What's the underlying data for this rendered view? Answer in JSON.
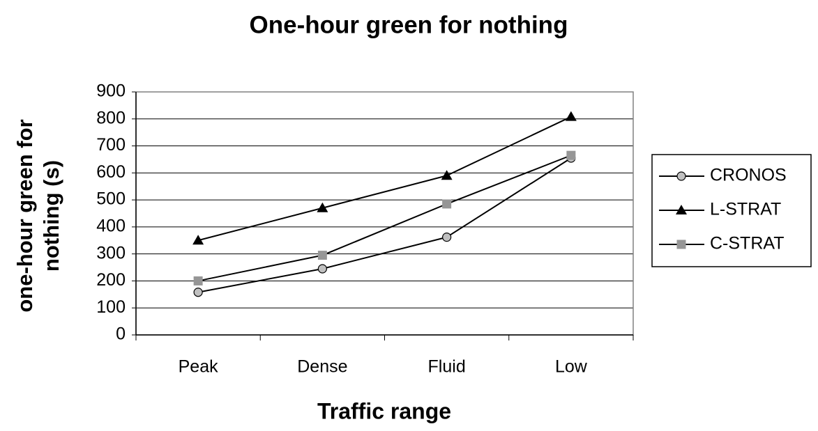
{
  "chart_data": {
    "type": "line",
    "title": "One-hour green for nothing",
    "x_label": "Traffic range",
    "y_label": "one-hour green for nothing (s)",
    "categories": [
      "Peak",
      "Dense",
      "Fluid",
      "Low"
    ],
    "series": [
      {
        "name": "CRONOS",
        "color": "#c0c0c0",
        "marker": "circle",
        "values": [
          158,
          245,
          362,
          655
        ]
      },
      {
        "name": "L-STRAT",
        "color": "#000000",
        "marker": "triangle",
        "values": [
          350,
          470,
          590,
          808
        ]
      },
      {
        "name": "C-STRAT",
        "color": "#969696",
        "marker": "square",
        "values": [
          200,
          295,
          485,
          665
        ]
      }
    ],
    "line_color": "#000000",
    "ylim": [
      0,
      900
    ],
    "yticks": [
      0,
      100,
      200,
      300,
      400,
      500,
      600,
      700,
      800,
      900
    ],
    "grid": true,
    "legend": "right"
  }
}
